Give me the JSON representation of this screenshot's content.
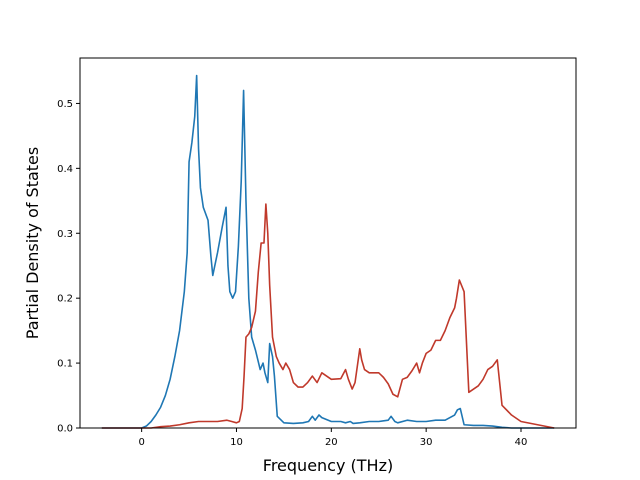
{
  "chart_data": {
    "type": "line",
    "title": "",
    "xlabel": "Frequency (THz)",
    "ylabel": "Partial Density of States",
    "xlim": [
      -6.5,
      45.8
    ],
    "ylim": [
      0,
      0.57
    ],
    "xticks": [
      "0",
      "10",
      "20",
      "30",
      "40"
    ],
    "xtick_values": [
      0,
      10,
      20,
      30,
      40
    ],
    "yticks": [
      "0.0",
      "0.1",
      "0.2",
      "0.3",
      "0.4",
      "0.5"
    ],
    "ytick_values": [
      0,
      0.1,
      0.2,
      0.3,
      0.4,
      0.5
    ],
    "grid": false,
    "colors": {
      "series1": "#1f77b4",
      "series2": "#c0392b"
    },
    "series": [
      {
        "x": [
          -4.2,
          -1,
          0,
          0.5,
          1,
          1.5,
          2,
          2.5,
          3,
          3.5,
          4,
          4.5,
          4.8,
          5.0,
          5.3,
          5.6,
          5.8,
          6.0,
          6.2,
          6.5,
          7.0,
          7.3,
          7.5,
          8.0,
          8.5,
          8.9,
          9.1,
          9.3,
          9.6,
          9.9,
          10.2,
          10.5,
          10.75,
          11.0,
          11.3,
          11.6,
          12.0,
          12.5,
          12.8,
          13.0,
          13.3,
          13.5,
          13.8,
          14.0,
          14.3,
          15,
          16,
          17,
          17.6,
          18,
          18.3,
          18.7,
          19,
          20,
          21,
          21.5,
          22,
          22.3,
          23,
          24,
          25,
          26,
          26.3,
          26.7,
          27.0,
          28,
          29,
          30,
          31,
          32,
          33,
          33.3,
          33.6,
          34,
          35,
          36,
          37,
          38,
          39,
          40,
          43.5
        ],
        "y": [
          0,
          0,
          0,
          0.003,
          0.01,
          0.02,
          0.032,
          0.05,
          0.075,
          0.11,
          0.15,
          0.21,
          0.27,
          0.41,
          0.44,
          0.48,
          0.543,
          0.43,
          0.37,
          0.34,
          0.32,
          0.265,
          0.235,
          0.27,
          0.31,
          0.34,
          0.25,
          0.21,
          0.2,
          0.21,
          0.28,
          0.38,
          0.52,
          0.35,
          0.2,
          0.14,
          0.12,
          0.09,
          0.1,
          0.085,
          0.07,
          0.13,
          0.11,
          0.08,
          0.018,
          0.008,
          0.007,
          0.008,
          0.01,
          0.018,
          0.012,
          0.02,
          0.016,
          0.01,
          0.01,
          0.008,
          0.01,
          0.007,
          0.008,
          0.01,
          0.01,
          0.012,
          0.018,
          0.01,
          0.008,
          0.012,
          0.01,
          0.01,
          0.012,
          0.012,
          0.02,
          0.028,
          0.03,
          0.005,
          0.004,
          0.004,
          0.003,
          0.001,
          0,
          0,
          0
        ]
      },
      {
        "x": [
          -4.2,
          -1,
          0,
          1,
          2,
          3,
          4,
          5,
          6,
          7,
          8,
          9,
          9.5,
          10,
          10.3,
          10.6,
          10.8,
          11,
          11.3,
          11.6,
          12,
          12.3,
          12.6,
          12.9,
          13.1,
          13.3,
          13.5,
          13.8,
          14.2,
          14.5,
          14.9,
          15.2,
          15.6,
          16,
          16.5,
          17,
          17.5,
          18,
          18.5,
          19,
          20,
          21,
          21.5,
          21.8,
          22.2,
          22.5,
          23,
          23.2,
          23.5,
          24,
          24.5,
          25,
          25.5,
          26,
          26.5,
          27,
          27.5,
          28,
          28.5,
          29,
          29.3,
          29.6,
          30,
          30.5,
          31,
          31.5,
          32,
          32.5,
          33,
          33.2,
          33.5,
          34,
          34.5,
          35,
          35.5,
          36,
          36.5,
          37,
          37.5,
          38,
          39,
          40,
          43.5
        ],
        "y": [
          0,
          0,
          0,
          0,
          0.002,
          0.003,
          0.005,
          0.008,
          0.01,
          0.01,
          0.01,
          0.012,
          0.01,
          0.008,
          0.01,
          0.03,
          0.08,
          0.14,
          0.145,
          0.155,
          0.18,
          0.24,
          0.285,
          0.285,
          0.345,
          0.3,
          0.22,
          0.14,
          0.11,
          0.1,
          0.09,
          0.1,
          0.09,
          0.07,
          0.063,
          0.063,
          0.07,
          0.08,
          0.07,
          0.085,
          0.075,
          0.076,
          0.09,
          0.075,
          0.06,
          0.07,
          0.122,
          0.105,
          0.09,
          0.085,
          0.085,
          0.085,
          0.078,
          0.068,
          0.052,
          0.048,
          0.075,
          0.078,
          0.088,
          0.1,
          0.085,
          0.1,
          0.115,
          0.12,
          0.135,
          0.135,
          0.15,
          0.17,
          0.185,
          0.2,
          0.228,
          0.21,
          0.055,
          0.06,
          0.065,
          0.075,
          0.09,
          0.095,
          0.105,
          0.035,
          0.02,
          0.01,
          0
        ]
      }
    ]
  }
}
